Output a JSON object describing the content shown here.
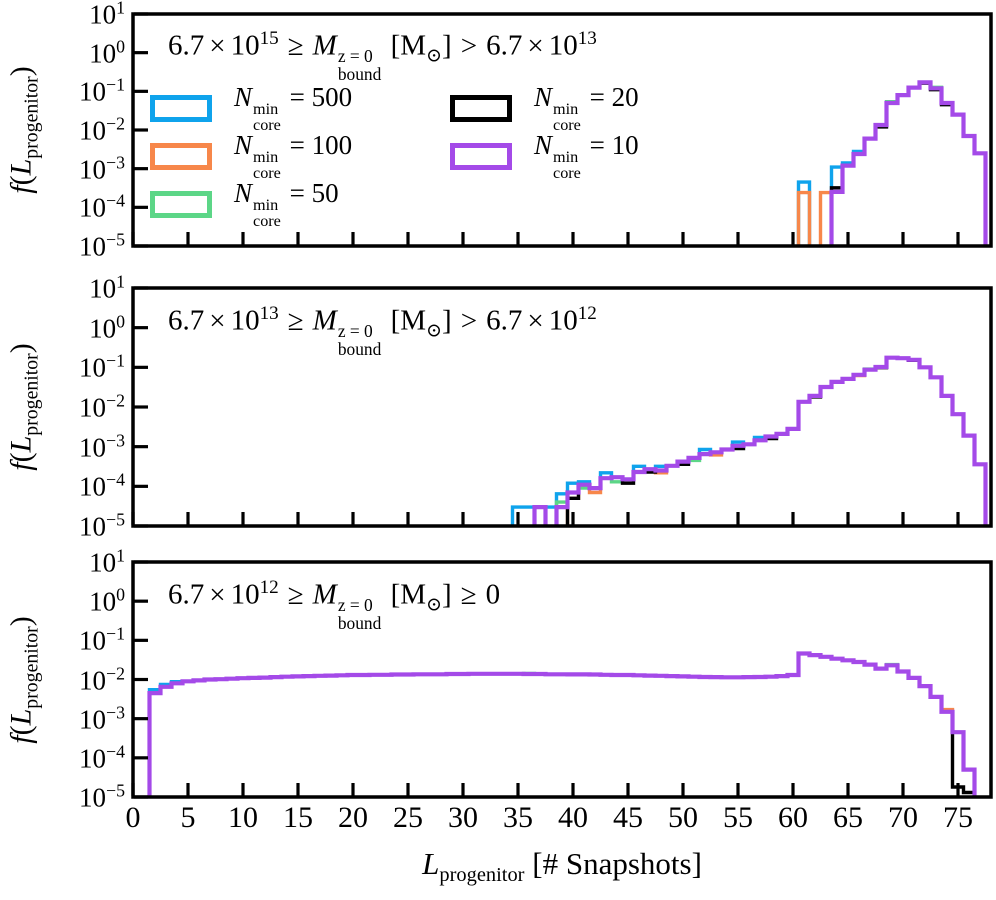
{
  "chart_data": {
    "type": "step-histogram",
    "x_axis": {
      "label_main": "L",
      "label_sub": "progenitor",
      "label_rest": " [# Snapshots]",
      "ticks": [
        0,
        5,
        10,
        15,
        20,
        25,
        30,
        35,
        40,
        45,
        50,
        55,
        60,
        65,
        70,
        75
      ],
      "lim": [
        0,
        78
      ]
    },
    "y_axis": {
      "label_f": "f",
      "label_open": "(",
      "label_L": "L",
      "label_sub": "progenitor",
      "label_close": ")",
      "tick_base": "10",
      "tick_exponents": [
        1,
        0,
        -1,
        -2,
        -3,
        -4,
        -5
      ],
      "lim_exponents": [
        -5,
        1
      ]
    },
    "series": [
      {
        "key": "n500",
        "label_var": "N",
        "label_sup": "min",
        "label_sub": "core",
        "label_eq": " = ",
        "value": "500",
        "color": "#0fa3ec"
      },
      {
        "key": "n100",
        "label_var": "N",
        "label_sup": "min",
        "label_sub": "core",
        "label_eq": " = ",
        "value": "100",
        "color": "#f7874a"
      },
      {
        "key": "n50",
        "label_var": "N",
        "label_sup": "min",
        "label_sub": "core",
        "label_eq": " = ",
        "value": "50",
        "color": "#5cd687"
      },
      {
        "key": "n20",
        "label_var": "N",
        "label_sup": "min",
        "label_sub": "core",
        "label_eq": " = ",
        "value": "20",
        "color": "#000000"
      },
      {
        "key": "n10",
        "label_var": "N",
        "label_sup": "min",
        "label_sub": "core",
        "label_eq": " = ",
        "value": "10",
        "color": "#a44ae8"
      }
    ],
    "panels": [
      {
        "id": "top",
        "title": {
          "lhs_coeff": "6.7",
          "times": "×",
          "base": "10",
          "lhs_exp": "15",
          "rel1": "≥",
          "mass_var": "M",
          "mass_sup": "z = 0",
          "mass_sub": "bound",
          "unit_open": "[M",
          "unit_sub": "⊙",
          "unit_close": "]",
          "rel2": ">",
          "rhs_coeff": "6.7",
          "rhs_exp": "13"
        },
        "bins_common": {
          "64": 0.00025,
          "65": 0.0012,
          "66": 0.0024,
          "67": 0.006,
          "68": 0.0135,
          "69": 0.05,
          "70": 0.08,
          "71": 0.125,
          "72": 0.17,
          "73": 0.12,
          "74": 0.05,
          "75": 0.025,
          "76": 0.007,
          "77": 0.0025
        },
        "overrides": {
          "n500": {
            "61": 0.00045,
            "64": 0.0011,
            "65": 0.0014,
            "66": 0.0028
          },
          "n100": {
            "61": 0.00024,
            "63": 0.00024
          },
          "n50": {
            "69": 0.054,
            "73": 0.127
          },
          "n20": {
            "64": 0.00032,
            "68": 0.012,
            "72": 0.162,
            "73": 0.11,
            "74": 0.045
          },
          "n10": {}
        }
      },
      {
        "id": "middle",
        "title": {
          "lhs_coeff": "6.7",
          "times": "×",
          "base": "10",
          "lhs_exp": "13",
          "rel1": "≥",
          "mass_var": "M",
          "mass_sup": "z = 0",
          "mass_sub": "bound",
          "unit_open": "[M",
          "unit_sub": "⊙",
          "unit_close": "]",
          "rel2": ">",
          "rhs_coeff": "6.7",
          "rhs_exp": "12"
        },
        "bins_common": {
          "40": 7e-05,
          "41": 0.00011,
          "42": 9e-05,
          "43": 0.00016,
          "44": 0.00017,
          "45": 0.00015,
          "46": 0.00023,
          "47": 0.00027,
          "48": 0.00025,
          "49": 0.00033,
          "50": 0.00042,
          "51": 0.00052,
          "52": 0.00065,
          "53": 0.00072,
          "54": 0.00085,
          "55": 0.00105,
          "56": 0.00115,
          "57": 0.00145,
          "58": 0.0018,
          "59": 0.0021,
          "60": 0.0028,
          "61": 0.0135,
          "62": 0.019,
          "63": 0.032,
          "64": 0.043,
          "65": 0.051,
          "66": 0.065,
          "67": 0.087,
          "68": 0.102,
          "69": 0.175,
          "70": 0.17,
          "71": 0.155,
          "72": 0.1,
          "73": 0.056,
          "74": 0.019,
          "75": 0.0066,
          "76": 0.0019,
          "77": 0.00036
        },
        "overrides": {
          "n500": {
            "35": 3e-05,
            "36": 3e-05,
            "37": 3e-05,
            "38": 3e-05,
            "39": 6.5e-05,
            "40": 0.00012,
            "41": 0.00013,
            "43": 0.00022,
            "46": 0.00032,
            "48": 0.00032,
            "52": 0.00085,
            "55": 0.0013,
            "57": 0.0017
          },
          "n100": {
            "40": 5e-05,
            "42": 7e-05,
            "48": 0.00022,
            "53": 0.00062,
            "66": 0.062
          },
          "n50": {
            "39": 4e-05,
            "41": 9e-05,
            "44": 0.00013,
            "51": 0.00045,
            "67": 0.09
          },
          "n20": {
            "40": 5e-05,
            "45": 0.00012,
            "47": 0.00023,
            "50": 0.00036,
            "55": 0.0009,
            "58": 0.0016,
            "62": 0.018,
            "68": 0.098,
            "71": 0.15
          },
          "n10": {
            "37": 3e-05,
            "39": 3e-05
          }
        }
      },
      {
        "id": "bottom",
        "title": {
          "lhs_coeff": "6.7",
          "times": "×",
          "base": "10",
          "lhs_exp": "12",
          "rel1": "≥",
          "mass_var": "M",
          "mass_sup": "z = 0",
          "mass_sub": "bound",
          "unit_open": "[M",
          "unit_sub": "⊙",
          "unit_close": "]",
          "rel2": "≥",
          "rhs_coeff": "0",
          "rhs_exp": ""
        },
        "bins_common": {
          "2": 0.0045,
          "3": 0.0065,
          "4": 0.008,
          "5": 0.009,
          "6": 0.0095,
          "7": 0.01,
          "8": 0.0102,
          "9": 0.0105,
          "10": 0.0108,
          "11": 0.011,
          "12": 0.0112,
          "13": 0.0115,
          "14": 0.0118,
          "15": 0.012,
          "16": 0.0122,
          "17": 0.0124,
          "18": 0.0126,
          "19": 0.0128,
          "20": 0.013,
          "21": 0.013,
          "22": 0.0132,
          "23": 0.0132,
          "24": 0.0134,
          "25": 0.0134,
          "26": 0.0136,
          "27": 0.0136,
          "28": 0.0136,
          "29": 0.0138,
          "30": 0.0138,
          "31": 0.014,
          "32": 0.014,
          "33": 0.014,
          "34": 0.014,
          "35": 0.014,
          "36": 0.0138,
          "37": 0.0138,
          "38": 0.0136,
          "39": 0.0136,
          "40": 0.0135,
          "41": 0.0135,
          "42": 0.0134,
          "43": 0.0132,
          "44": 0.013,
          "45": 0.013,
          "46": 0.0128,
          "47": 0.0126,
          "48": 0.0124,
          "49": 0.0122,
          "50": 0.012,
          "51": 0.0118,
          "52": 0.0116,
          "53": 0.0115,
          "54": 0.0114,
          "55": 0.0114,
          "56": 0.0115,
          "57": 0.0116,
          "58": 0.0118,
          "59": 0.0122,
          "60": 0.013,
          "61": 0.046,
          "62": 0.042,
          "63": 0.038,
          "64": 0.034,
          "65": 0.031,
          "66": 0.028,
          "67": 0.024,
          "68": 0.019,
          "69": 0.023,
          "70": 0.016,
          "71": 0.011,
          "72": 0.0068,
          "73": 0.0036,
          "74": 0.0015,
          "75": 0.00045,
          "76": 5e-05
        },
        "overrides": {
          "n500": {
            "2": 0.0055,
            "3": 0.0075,
            "4": 0.0088
          },
          "n100": {
            "74": 0.0017
          },
          "n50": {
            "36": 0.0142,
            "69": 0.024
          },
          "n20": {
            "75": 1.8e-05,
            "76": 1.3e-05
          },
          "n10": {}
        }
      }
    ]
  }
}
